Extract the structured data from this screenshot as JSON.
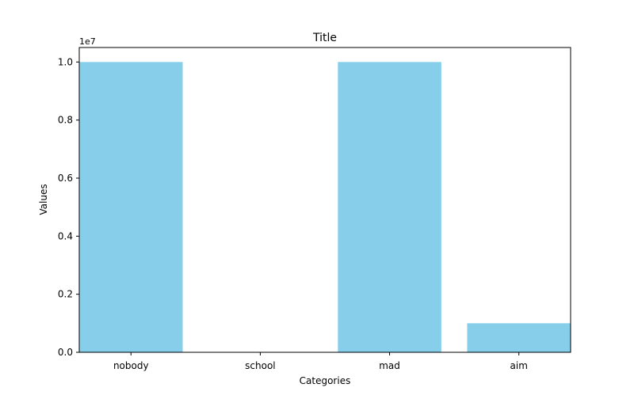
{
  "chart_data": {
    "type": "bar",
    "title": "Title",
    "xlabel": "Categories",
    "ylabel": "Values",
    "y_offset_label": "1e7",
    "categories": [
      "nobody",
      "school",
      "mad",
      "aim"
    ],
    "values": [
      10000000,
      0,
      10000000,
      1000000
    ],
    "ylim": [
      0,
      10500000
    ],
    "y_scale_factor": 10000000,
    "y_ticks": [
      0,
      2000000,
      4000000,
      6000000,
      8000000,
      10000000
    ],
    "y_tick_labels": [
      "0.0",
      "0.2",
      "0.4",
      "0.6",
      "0.8",
      "1.0"
    ],
    "grid": false,
    "legend": "none",
    "colors": {
      "bar": "#87ceeb",
      "axis": "#000000",
      "background": "#ffffff"
    }
  }
}
